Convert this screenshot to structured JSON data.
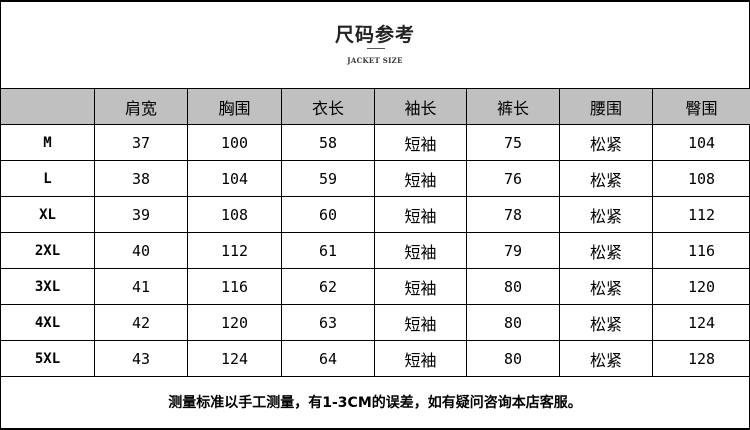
{
  "header": {
    "title": "尺码参考",
    "subtitle": "JACKET SIZE"
  },
  "table": {
    "columns": [
      "",
      "肩宽",
      "胸围",
      "衣长",
      "袖长",
      "裤长",
      "腰围",
      "臀围"
    ],
    "rows": [
      [
        "M",
        "37",
        "100",
        "58",
        "短袖",
        "75",
        "松紧",
        "104"
      ],
      [
        "L",
        "38",
        "104",
        "59",
        "短袖",
        "76",
        "松紧",
        "108"
      ],
      [
        "XL",
        "39",
        "108",
        "60",
        "短袖",
        "78",
        "松紧",
        "112"
      ],
      [
        "2XL",
        "40",
        "112",
        "61",
        "短袖",
        "79",
        "松紧",
        "116"
      ],
      [
        "3XL",
        "41",
        "116",
        "62",
        "短袖",
        "80",
        "松紧",
        "120"
      ],
      [
        "4XL",
        "42",
        "120",
        "63",
        "短袖",
        "80",
        "松紧",
        "124"
      ],
      [
        "5XL",
        "43",
        "124",
        "64",
        "短袖",
        "80",
        "松紧",
        "128"
      ]
    ]
  },
  "footer": {
    "note": "测量标准以手工测量，有1-3CM的误差，如有疑问咨询本店客服。"
  },
  "colors": {
    "header_row_bg": "#c0c0c0",
    "border": "#000000"
  }
}
